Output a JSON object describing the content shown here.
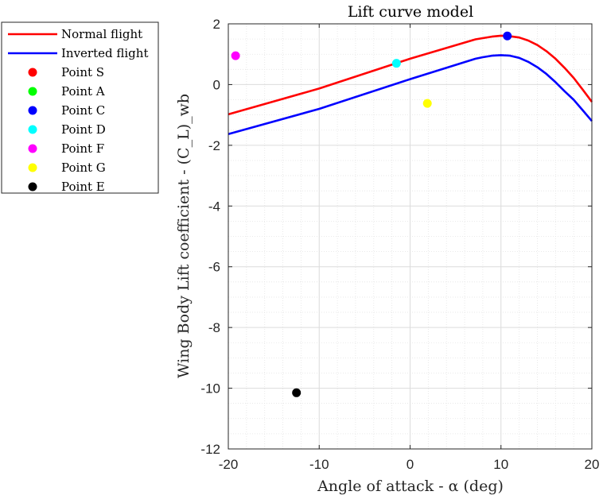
{
  "chart_data": {
    "type": "line",
    "title": "Lift curve model",
    "xlabel": "Angle of attack - α (deg)",
    "ylabel": "Wing Body Lift coefficient - (C_L)_wb",
    "xlim": [
      -20,
      20
    ],
    "ylim": [
      -12,
      2
    ],
    "xticks": [
      -20,
      -10,
      0,
      10,
      20
    ],
    "yticks": [
      2,
      0,
      -2,
      -4,
      -6,
      -8,
      -10,
      -12
    ],
    "xtick_labels": [
      "-20",
      "-10",
      "0",
      "10",
      "20"
    ],
    "ytick_labels": [
      "2",
      "0",
      "-2",
      "-4",
      "-6",
      "-8",
      "-10",
      "-12"
    ],
    "grid": true,
    "minor_grid": true,
    "legend_position": "outside-top-left",
    "series": [
      {
        "name": "Normal flight",
        "color": "#ff0000",
        "x": [
          -20,
          -10,
          0,
          7.2,
          8,
          9,
          10,
          10.8,
          12,
          13,
          14,
          15,
          16,
          17,
          18,
          19,
          20
        ],
        "y": [
          -0.98,
          -0.13,
          0.85,
          1.49,
          1.53,
          1.58,
          1.61,
          1.6,
          1.55,
          1.45,
          1.3,
          1.1,
          0.85,
          0.55,
          0.22,
          -0.17,
          -0.57
        ]
      },
      {
        "name": "Inverted flight",
        "color": "#0000ff",
        "x": [
          -20,
          -10,
          0,
          7.2,
          8,
          9,
          10,
          11,
          12,
          13,
          14,
          15,
          16,
          17,
          18,
          19,
          20
        ],
        "y": [
          -1.63,
          -0.8,
          0.18,
          0.85,
          0.9,
          0.95,
          0.97,
          0.95,
          0.88,
          0.75,
          0.57,
          0.35,
          0.08,
          -0.22,
          -0.5,
          -0.85,
          -1.2
        ]
      }
    ],
    "points": [
      {
        "name": "Point S",
        "color": "#ff0000",
        "x": null,
        "y": null
      },
      {
        "name": "Point A",
        "color": "#00ff00",
        "x": null,
        "y": null
      },
      {
        "name": "Point C",
        "color": "#0000ff",
        "x": 10.7,
        "y": 1.6
      },
      {
        "name": "Point D",
        "color": "#00ffff",
        "x": -1.5,
        "y": 0.7
      },
      {
        "name": "Point F",
        "color": "#ff00ff",
        "x": -19.2,
        "y": 0.95
      },
      {
        "name": "Point G",
        "color": "#ffff00",
        "x": 1.9,
        "y": -0.62
      },
      {
        "name": "Point E",
        "color": "#000000",
        "x": -12.5,
        "y": -10.15
      }
    ]
  }
}
